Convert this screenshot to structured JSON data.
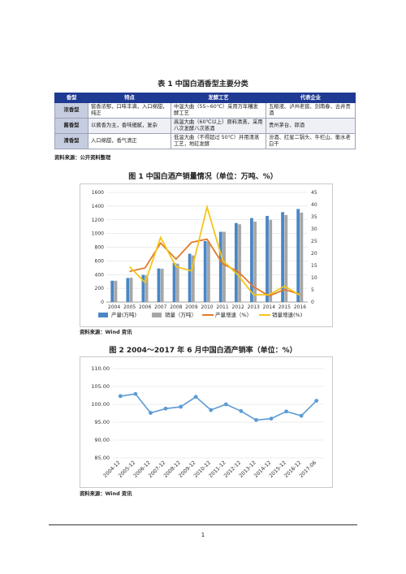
{
  "table1": {
    "caption": "表 1    中国白酒香型主要分类",
    "headers": [
      "香型",
      "特点",
      "发酵工艺",
      "代表企业"
    ],
    "rows": [
      {
        "type": "浓香型",
        "feature": "窖香浓郁，口味丰满，入口绵甜，纯正",
        "process": "中温大曲（55~60℃）采用万年糟发酵工艺",
        "companies": "五粮液、泸州老窖、剑南春、古井贡酒"
      },
      {
        "type": "酱香型",
        "feature": "以酱香为主，香味细腻，复杂",
        "process": "高温大曲（60℃以上）原料清蒸，采用八次发酵八次蒸酒",
        "companies": "贵州茅台、郎酒"
      },
      {
        "type": "清香型",
        "feature": "入口绵甜，香气清正",
        "process": "低温大曲（不得超过 50℃）并用清蒸工艺，地缸发酵",
        "companies": "汾酒、红星二锅头、牛栏山、衡水老白干"
      }
    ],
    "source": "资料来源：公开资料整理"
  },
  "figure1": {
    "caption": "图 1    中国白酒产销量情况（单位：万吨、%）",
    "source": "资料来源：Wind 资讯",
    "chart_data": {
      "type": "bar",
      "categories": [
        "2004",
        "2005",
        "2006",
        "2007",
        "2008",
        "2009",
        "2010",
        "2011",
        "2012",
        "2013",
        "2014",
        "2015",
        "2016"
      ],
      "series": [
        {
          "name": "产量(万吨)",
          "kind": "bar",
          "axis": "left",
          "color": "#4a86c5",
          "values": [
            311,
            350,
            395,
            490,
            570,
            705,
            890,
            1025,
            1153,
            1226,
            1257,
            1313,
            1358
          ]
        },
        {
          "name": "销量（万吨）",
          "kind": "bar",
          "axis": "left",
          "color": "#a6a6a6",
          "values": [
            310,
            355,
            390,
            485,
            560,
            680,
            880,
            1025,
            1135,
            1175,
            1200,
            1270,
            1305
          ]
        },
        {
          "name": "产量增速（%）",
          "kind": "line",
          "axis": "right",
          "color": "#e07b2a",
          "values": [
            null,
            12.6,
            14,
            24.2,
            17.6,
            24.5,
            25.8,
            15.7,
            12.5,
            6.3,
            2.5,
            5.1,
            3.2
          ]
        },
        {
          "name": "销量增速(%)",
          "kind": "line",
          "axis": "right",
          "color": "#f5c518",
          "values": [
            null,
            14.5,
            8,
            26.5,
            14.5,
            12.8,
            39,
            17.2,
            11,
            3,
            3,
            6.5,
            2.8
          ]
        }
      ],
      "ylim_left": [
        0,
        1600
      ],
      "yticks_left": [
        "0",
        "200",
        "400",
        "600",
        "800",
        "1000",
        "1200",
        "1400",
        "1600"
      ],
      "ylim_right": [
        0,
        45
      ],
      "yticks_right": [
        "0",
        "5",
        "10",
        "15",
        "20",
        "25",
        "30",
        "35",
        "40",
        "45"
      ],
      "grid": true,
      "legend_position": "bottom"
    }
  },
  "figure2": {
    "caption": "图 2    2004～2017 年 6 月中国白酒产销率（单位：%）",
    "source": "资料来源：Wind 资讯",
    "chart_data": {
      "type": "line",
      "categories": [
        "2004-12",
        "2005-12",
        "2006-12",
        "2007-12",
        "2008-12",
        "2009-12",
        "2010-12",
        "2011-12",
        "2012-12",
        "2013-12",
        "2014-12",
        "2015-12",
        "2016-12",
        "2017-06"
      ],
      "series": [
        {
          "name": "",
          "color": "#5b9bd5",
          "values": [
            102.3,
            102.9,
            97.6,
            98.8,
            99.3,
            102.1,
            98.4,
            100,
            98.1,
            95.6,
            96,
            98,
            96.8,
            101
          ]
        }
      ],
      "ylim": [
        85,
        110
      ],
      "yticks": [
        "85.00",
        "90.00",
        "95.00",
        "100.00",
        "105.00",
        "110.00"
      ],
      "grid": true
    }
  },
  "page": {
    "number": "1"
  }
}
